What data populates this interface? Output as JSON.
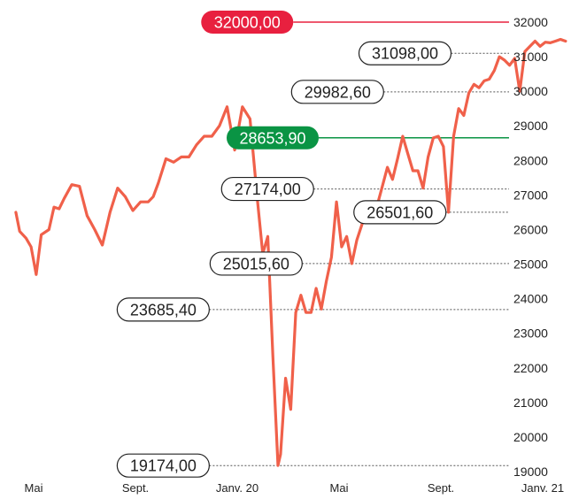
{
  "chart_data": {
    "type": "line",
    "title": "",
    "xlabel": "",
    "ylabel": "",
    "ylim": [
      19000,
      32000
    ],
    "y_ticks": [
      19000,
      20000,
      21000,
      22000,
      23000,
      24000,
      25000,
      26000,
      27000,
      28000,
      29000,
      30000,
      31000,
      32000
    ],
    "y_axis_side": "right",
    "grid": false,
    "legend": "none",
    "x_ticks": [
      {
        "label": "Mai",
        "x": 0
      },
      {
        "label": "Sept.",
        "x": 4
      },
      {
        "label": "Janv. 20",
        "x": 8
      },
      {
        "label": "Mai",
        "x": 12
      },
      {
        "label": "Sept.",
        "x": 16
      },
      {
        "label": "Janv. 21",
        "x": 20
      }
    ],
    "x_range": [
      0,
      21.2
    ],
    "series": [
      {
        "color": "#f0604a",
        "x": [
          -0.7,
          -0.55,
          -0.3,
          -0.1,
          0.1,
          0.3,
          0.6,
          0.8,
          1.0,
          1.2,
          1.5,
          1.8,
          2.1,
          2.4,
          2.7,
          3.0,
          3.3,
          3.6,
          3.9,
          4.2,
          4.5,
          4.7,
          4.9,
          5.2,
          5.5,
          5.8,
          6.1,
          6.4,
          6.7,
          7.0,
          7.3,
          7.6,
          7.9,
          8.2,
          8.5,
          8.8,
          9.0,
          9.2,
          9.4,
          9.6,
          9.7,
          9.9,
          10.1,
          10.3,
          10.5,
          10.7,
          10.9,
          11.1,
          11.3,
          11.5,
          11.7,
          11.9,
          12.1,
          12.3,
          12.5,
          12.7,
          12.9,
          13.1,
          13.3,
          13.5,
          13.7,
          13.9,
          14.1,
          14.3,
          14.5,
          14.7,
          14.9,
          15.1,
          15.3,
          15.5,
          15.7,
          15.9,
          16.1,
          16.3,
          16.5,
          16.7,
          16.9,
          17.1,
          17.3,
          17.5,
          17.7,
          17.9,
          18.1,
          18.3,
          18.5,
          18.7,
          18.9,
          19.1,
          19.3,
          19.5,
          19.7,
          19.9,
          20.1,
          20.3,
          20.5,
          20.7,
          20.9
        ],
        "values": [
          26500,
          25950,
          25750,
          25500,
          24700,
          25850,
          26000,
          26650,
          26600,
          26900,
          27300,
          27250,
          26400,
          26000,
          25550,
          26500,
          27200,
          26950,
          26550,
          26800,
          26800,
          26950,
          27350,
          28050,
          27950,
          28100,
          28100,
          28450,
          28700,
          28700,
          29000,
          29550,
          28300,
          29550,
          29200,
          26800,
          25300,
          25800,
          22300,
          19175,
          19500,
          21700,
          20800,
          23600,
          24100,
          23600,
          23600,
          24300,
          23700,
          24500,
          25200,
          26800,
          25500,
          25800,
          25016,
          25700,
          26150,
          26650,
          26550,
          26700,
          27250,
          27800,
          27450,
          28050,
          28700,
          28200,
          27700,
          27700,
          27200,
          28100,
          28650,
          28700,
          28400,
          26500,
          28700,
          29500,
          29300,
          29950,
          30200,
          30100,
          30300,
          30350,
          30600,
          31000,
          30900,
          30750,
          30950,
          30000,
          31150,
          31300,
          31450,
          31300,
          31420,
          31400,
          31450,
          31500,
          31450
        ]
      }
    ],
    "reference_lines": [
      {
        "value": 32000,
        "label": "32000,00",
        "style": "solid",
        "color": "#e8203f",
        "label_x": 10.2,
        "filled": true
      },
      {
        "value": 31098,
        "label": "31098,00",
        "style": "dotted",
        "color": "#555555",
        "label_x": 16.4,
        "filled": false
      },
      {
        "value": 29982.6,
        "label": "29982,60",
        "style": "dotted",
        "color": "#555555",
        "label_x": 13.75,
        "filled": false
      },
      {
        "value": 28653.9,
        "label": "28653,90",
        "style": "solid",
        "color": "#0a9444",
        "label_x": 11.2,
        "filled": true
      },
      {
        "value": 27174,
        "label": "27174,00",
        "style": "dotted",
        "color": "#555555",
        "label_x": 11.0,
        "filled": false
      },
      {
        "value": 26501.6,
        "label": "26501,60",
        "style": "dotted",
        "color": "#555555",
        "label_x": 16.2,
        "filled": false
      },
      {
        "value": 25015.6,
        "label": "25015,60",
        "style": "dotted",
        "color": "#555555",
        "label_x": 10.55,
        "filled": false
      },
      {
        "value": 23685.4,
        "label": "23685,40",
        "style": "dotted",
        "color": "#555555",
        "label_x": 6.9,
        "filled": false
      },
      {
        "value": 19174,
        "label": "19174,00",
        "style": "dotted",
        "color": "#555555",
        "label_x": 6.9,
        "filled": false
      }
    ]
  }
}
